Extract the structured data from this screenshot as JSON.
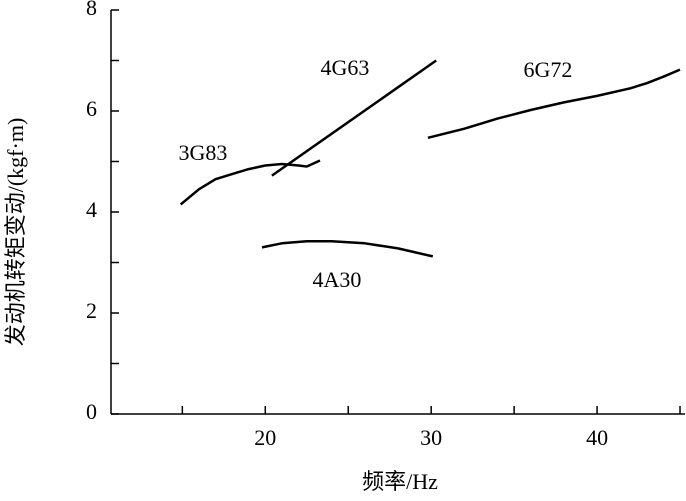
{
  "chart_data": {
    "type": "line",
    "xlabel": "频率/Hz",
    "ylabel": "发动机转矩变动/(kgf·m)",
    "xlim": [
      10.7,
      45.3
    ],
    "ylim": [
      0,
      8
    ],
    "xticks": [
      20,
      30,
      40
    ],
    "yticks": [
      0,
      2,
      4,
      6,
      8
    ],
    "xminorticks": [
      15,
      25,
      35,
      45
    ],
    "yminorticks": [
      1,
      3,
      5,
      7
    ],
    "series": [
      {
        "name": "3G83",
        "color": "#000000",
        "x": [
          14.9,
          16,
          17,
          18,
          19,
          20,
          21,
          22,
          22.5,
          23.3
        ],
        "values": [
          4.15,
          4.45,
          4.65,
          4.75,
          4.85,
          4.92,
          4.95,
          4.92,
          4.9,
          5.02
        ]
      },
      {
        "name": "4G63",
        "color": "#000000",
        "x": [
          20.4,
          30.3
        ],
        "values": [
          4.72,
          7.0
        ]
      },
      {
        "name": "6G72",
        "color": "#000000",
        "x": [
          29.8,
          32,
          34,
          36,
          38,
          40,
          42,
          43,
          44,
          45
        ],
        "values": [
          5.47,
          5.65,
          5.85,
          6.02,
          6.17,
          6.3,
          6.45,
          6.55,
          6.68,
          6.82
        ]
      },
      {
        "name": "4A30",
        "color": "#000000",
        "x": [
          19.8,
          21,
          22.5,
          24,
          26,
          28,
          30.1
        ],
        "values": [
          3.3,
          3.38,
          3.42,
          3.42,
          3.38,
          3.28,
          3.12
        ]
      }
    ]
  }
}
